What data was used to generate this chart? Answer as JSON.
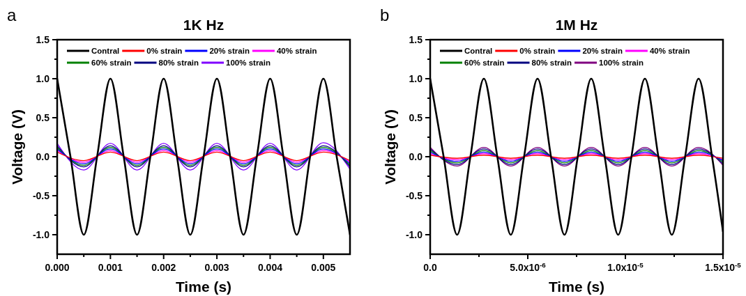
{
  "chart_data": [
    {
      "type": "line",
      "title": "1K Hz",
      "xlabel": "Time (s)",
      "ylabel": "Voltage (V)",
      "annotations": [
        "a"
      ],
      "legend": "top",
      "x": [
        0,
        0.00025,
        0.0005,
        0.00075,
        0.001,
        0.00125,
        0.0015,
        0.00175,
        0.002,
        0.00225,
        0.0025,
        0.00275,
        0.003,
        0.00325,
        0.0035,
        0.00375,
        0.004,
        0.00425,
        0.0045,
        0.00475,
        0.005,
        0.00525,
        0.0055
      ],
      "xlim": [
        0,
        0.0055
      ],
      "xticks": [
        {
          "value": 0,
          "label": "0.000"
        },
        {
          "value": 0.0005,
          "label": null
        },
        {
          "value": 0.001,
          "label": "0.001"
        },
        {
          "value": 0.0015,
          "label": null
        },
        {
          "value": 0.002,
          "label": "0.002"
        },
        {
          "value": 0.0025,
          "label": null
        },
        {
          "value": 0.003,
          "label": "0.003"
        },
        {
          "value": 0.0035,
          "label": null
        },
        {
          "value": 0.004,
          "label": "0.004"
        },
        {
          "value": 0.0045,
          "label": null
        },
        {
          "value": 0.005,
          "label": "0.005"
        }
      ],
      "ylim": [
        -1.25,
        1.5
      ],
      "yticks": [
        {
          "value": -1,
          "label": "-1.0"
        },
        {
          "value": -0.75,
          "label": null
        },
        {
          "value": -0.5,
          "label": "-0.5"
        },
        {
          "value": -0.25,
          "label": null
        },
        {
          "value": 0,
          "label": "0.0"
        },
        {
          "value": 0.25,
          "label": null
        },
        {
          "value": 0.5,
          "label": "0.5"
        },
        {
          "value": 0.75,
          "label": null
        },
        {
          "value": 1,
          "label": "1.0"
        },
        {
          "value": 1.25,
          "label": null
        },
        {
          "value": 1.5,
          "label": "1.5"
        }
      ],
      "series": [
        {
          "name": "Contral",
          "color": "#000000",
          "values": [
            1,
            0,
            -1,
            0,
            1,
            0,
            -1,
            0,
            1,
            0,
            -1,
            0,
            1,
            0,
            -1,
            0,
            1,
            0,
            -1,
            0,
            1,
            0,
            -1
          ]
        },
        {
          "name": "0% strain",
          "color": "#ff0000",
          "x": [
            0,
            0.0005,
            0.001,
            0.0015,
            0.002,
            0.0025,
            0.003,
            0.0035,
            0.004,
            0.0045,
            0.005,
            0.0055
          ],
          "values": [
            0.06,
            -0.05,
            0.06,
            -0.05,
            0.06,
            -0.05,
            0.06,
            -0.05,
            0.06,
            -0.05,
            0.06,
            -0.05
          ]
        },
        {
          "name": "20% strain",
          "color": "#0000ff",
          "x": [
            0,
            0.0005,
            0.001,
            0.0015,
            0.002,
            0.0025,
            0.003,
            0.0035,
            0.004,
            0.0045,
            0.005,
            0.0055
          ],
          "values": [
            0.1,
            -0.09,
            0.1,
            -0.09,
            0.1,
            -0.09,
            0.1,
            -0.09,
            0.1,
            -0.09,
            0.1,
            -0.09
          ]
        },
        {
          "name": "40% strain",
          "color": "#ff00ff",
          "x": [
            0,
            0.0005,
            0.001,
            0.0015,
            0.002,
            0.0025,
            0.003,
            0.0035,
            0.004,
            0.0045,
            0.005,
            0.0055
          ],
          "values": [
            0.08,
            -0.07,
            0.08,
            -0.07,
            0.08,
            -0.07,
            0.08,
            -0.07,
            0.08,
            -0.07,
            0.08,
            -0.07
          ]
        },
        {
          "name": "60% strain",
          "color": "#008000",
          "x": [
            0,
            0.0005,
            0.001,
            0.0015,
            0.002,
            0.0025,
            0.003,
            0.0035,
            0.004,
            0.0045,
            0.005,
            0.0055
          ],
          "values": [
            0.12,
            -0.11,
            0.12,
            -0.11,
            0.12,
            -0.11,
            0.12,
            -0.11,
            0.12,
            -0.11,
            0.12,
            -0.11
          ]
        },
        {
          "name": "80% strain",
          "color": "#000080",
          "x": [
            0,
            0.0005,
            0.001,
            0.0015,
            0.002,
            0.0025,
            0.003,
            0.0035,
            0.004,
            0.0045,
            0.005,
            0.0055
          ],
          "values": [
            0.14,
            -0.13,
            0.14,
            -0.13,
            0.14,
            -0.13,
            0.14,
            -0.13,
            0.14,
            -0.13,
            0.14,
            -0.13
          ]
        },
        {
          "name": "100% strain",
          "color": "#8000ff",
          "x": [
            0,
            0.0005,
            0.001,
            0.0015,
            0.002,
            0.0025,
            0.003,
            0.0035,
            0.004,
            0.0045,
            0.005,
            0.0055
          ],
          "values": [
            0.17,
            -0.17,
            0.17,
            -0.17,
            0.17,
            -0.17,
            0.17,
            -0.17,
            0.17,
            -0.17,
            0.18,
            -0.16
          ]
        }
      ]
    },
    {
      "type": "line",
      "title": "1M Hz",
      "xlabel": "Time (s)",
      "ylabel": "Voltage (V)",
      "annotations": [
        "b"
      ],
      "legend": "top",
      "x": [
        0,
        6.9e-07,
        1.38e-06,
        2.06e-06,
        2.75e-06,
        3.44e-06,
        4.13e-06,
        4.81e-06,
        5.5e-06,
        6.19e-06,
        6.88e-06,
        7.56e-06,
        8.25e-06,
        8.94e-06,
        9.63e-06,
        1.031e-05,
        1.1e-05,
        1.169e-05,
        1.238e-05,
        1.306e-05,
        1.375e-05,
        1.444e-05,
        1.5e-05
      ],
      "xlim": [
        0,
        1.5e-05
      ],
      "xticks": [
        {
          "value": 0,
          "label": "0.0"
        },
        {
          "value": 2.5e-06,
          "label": null
        },
        {
          "value": 5e-06,
          "label": "5.0x10$^{-6}$"
        },
        {
          "value": 7.5e-06,
          "label": null
        },
        {
          "value": 1e-05,
          "label": "1.0x10$^{-5}$"
        },
        {
          "value": 1.25e-05,
          "label": null
        },
        {
          "value": 1.5e-05,
          "label": "1.5x10$^{-5}$"
        }
      ],
      "ylim": [
        -1.25,
        1.5
      ],
      "yticks": [
        {
          "value": -1,
          "label": "-1.0"
        },
        {
          "value": -0.75,
          "label": null
        },
        {
          "value": -0.5,
          "label": "-0.5"
        },
        {
          "value": -0.25,
          "label": null
        },
        {
          "value": 0,
          "label": "0.0"
        },
        {
          "value": 0.25,
          "label": null
        },
        {
          "value": 0.5,
          "label": "0.5"
        },
        {
          "value": 0.75,
          "label": null
        },
        {
          "value": 1,
          "label": "1.0"
        },
        {
          "value": 1.25,
          "label": null
        },
        {
          "value": 1.5,
          "label": "1.5"
        }
      ],
      "series": [
        {
          "name": "Contral",
          "color": "#000000",
          "values": [
            1,
            0,
            -1,
            0,
            1,
            0,
            -1,
            0,
            1,
            0,
            -1,
            0,
            1,
            0,
            -1,
            0,
            1,
            0,
            -1,
            0,
            1,
            0,
            -0.96
          ]
        },
        {
          "name": "0% strain",
          "color": "#ff0000",
          "x": [
            0,
            1.38e-06,
            2.75e-06,
            4.13e-06,
            5.5e-06,
            6.88e-06,
            8.25e-06,
            9.63e-06,
            1.1e-05,
            1.238e-05,
            1.375e-05,
            1.5e-05
          ],
          "values": [
            0.02,
            -0.02,
            0.02,
            -0.02,
            0.02,
            -0.02,
            0.02,
            -0.02,
            0.02,
            -0.02,
            0.02,
            -0.02
          ]
        },
        {
          "name": "20% strain",
          "color": "#0000ff",
          "x": [
            0,
            1.38e-06,
            2.75e-06,
            4.13e-06,
            5.5e-06,
            6.88e-06,
            8.25e-06,
            9.63e-06,
            1.1e-05,
            1.238e-05,
            1.375e-05,
            1.5e-05
          ],
          "values": [
            0.06,
            -0.06,
            0.06,
            -0.06,
            0.06,
            -0.06,
            0.06,
            -0.06,
            0.06,
            -0.06,
            0.06,
            -0.05
          ]
        },
        {
          "name": "40% strain",
          "color": "#ff00ff",
          "x": [
            0,
            1.38e-06,
            2.75e-06,
            4.13e-06,
            5.5e-06,
            6.88e-06,
            8.25e-06,
            9.63e-06,
            1.1e-05,
            1.238e-05,
            1.375e-05,
            1.5e-05
          ],
          "values": [
            0.04,
            -0.04,
            0.04,
            -0.04,
            0.04,
            -0.04,
            0.04,
            -0.04,
            0.04,
            -0.04,
            0.04,
            -0.04
          ]
        },
        {
          "name": "60% strain",
          "color": "#008000",
          "x": [
            0,
            1.38e-06,
            2.75e-06,
            4.13e-06,
            5.5e-06,
            6.88e-06,
            8.25e-06,
            9.63e-06,
            1.1e-05,
            1.238e-05,
            1.375e-05,
            1.5e-05
          ],
          "values": [
            0.08,
            -0.08,
            0.08,
            -0.08,
            0.08,
            -0.08,
            0.08,
            -0.08,
            0.08,
            -0.08,
            0.08,
            -0.07
          ]
        },
        {
          "name": "80% strain",
          "color": "#000080",
          "x": [
            0,
            1.38e-06,
            2.75e-06,
            4.13e-06,
            5.5e-06,
            6.88e-06,
            8.25e-06,
            9.63e-06,
            1.1e-05,
            1.238e-05,
            1.375e-05,
            1.5e-05
          ],
          "values": [
            0.1,
            -0.1,
            0.1,
            -0.1,
            0.1,
            -0.1,
            0.1,
            -0.1,
            0.1,
            -0.1,
            0.1,
            -0.09
          ]
        },
        {
          "name": "100% strain",
          "color": "#800080",
          "x": [
            0,
            1.38e-06,
            2.75e-06,
            4.13e-06,
            5.5e-06,
            6.88e-06,
            8.25e-06,
            9.63e-06,
            1.1e-05,
            1.238e-05,
            1.375e-05,
            1.5e-05
          ],
          "values": [
            0.12,
            -0.12,
            0.12,
            -0.12,
            0.12,
            -0.12,
            0.12,
            -0.12,
            0.12,
            -0.12,
            0.12,
            -0.11
          ]
        }
      ]
    }
  ]
}
